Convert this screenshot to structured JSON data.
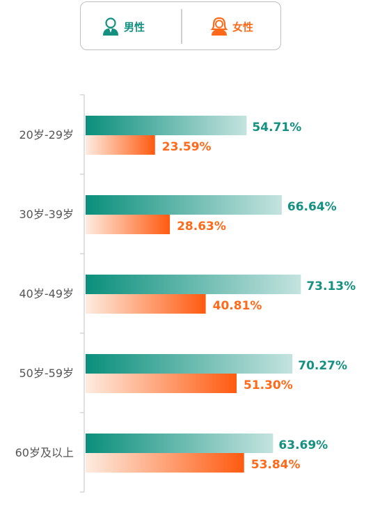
{
  "legend": {
    "male": {
      "label": "男性",
      "icon": "male-avatar-icon"
    },
    "female": {
      "label": "女性",
      "icon": "female-avatar-icon"
    }
  },
  "colors": {
    "male_dark": "#0a8f7c",
    "male_light": "#c4e3df",
    "female_dark": "#ff5a10",
    "female_light": "#fdece0",
    "male_text": "#149080",
    "female_text": "#ff6a1a"
  },
  "chart_data": {
    "type": "bar",
    "orientation": "horizontal",
    "categories": [
      "20岁-29岁",
      "30岁-39岁",
      "40岁-49岁",
      "50岁-59岁",
      "60岁及以上"
    ],
    "series": [
      {
        "name": "男性",
        "values": [
          54.71,
          66.64,
          73.13,
          70.27,
          63.69
        ],
        "labels": [
          "54.71%",
          "66.64%",
          "73.13%",
          "70.27%",
          "63.69%"
        ]
      },
      {
        "name": "女性",
        "values": [
          23.59,
          28.63,
          40.81,
          51.3,
          53.84
        ],
        "labels": [
          "23.59%",
          "28.63%",
          "40.81%",
          "51.30%",
          "53.84%"
        ]
      }
    ],
    "xlim": [
      0,
      100
    ],
    "grid": false,
    "legend_position": "top"
  }
}
